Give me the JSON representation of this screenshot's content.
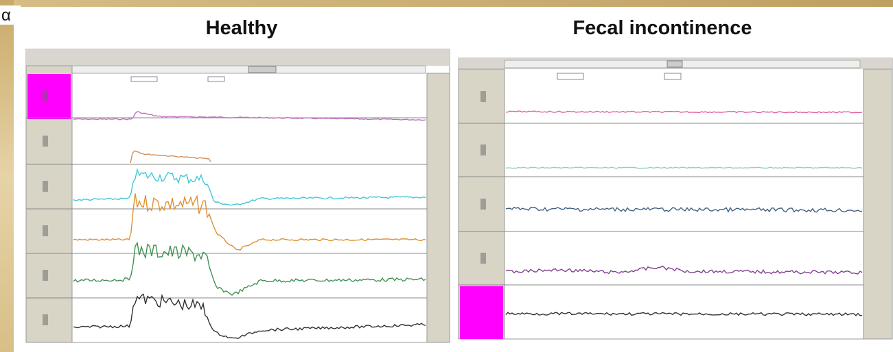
{
  "label": "α",
  "panels": [
    {
      "title": "Healthy"
    },
    {
      "title": "Fecal incontinence"
    }
  ]
}
